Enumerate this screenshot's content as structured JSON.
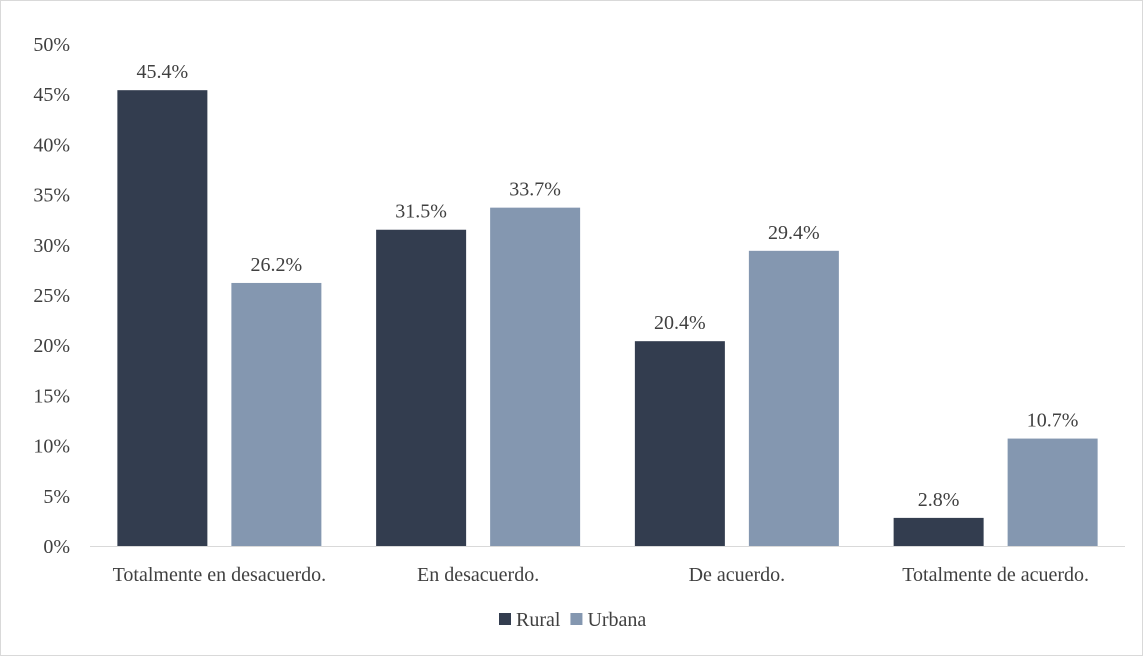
{
  "chart_data": {
    "type": "bar",
    "categories": [
      "Totalmente en desacuerdo.",
      "En desacuerdo.",
      "De acuerdo.",
      "Totalmente de acuerdo."
    ],
    "series": [
      {
        "name": "Rural",
        "values": [
          45.4,
          31.5,
          20.4,
          2.8
        ],
        "color": "#333d4f"
      },
      {
        "name": "Urbana",
        "values": [
          26.2,
          33.7,
          29.4,
          10.7
        ],
        "color": "#8497b0"
      }
    ],
    "data_labels": [
      [
        "45.4%",
        "31.5%",
        "20.4%",
        "2.8%"
      ],
      [
        "26.2%",
        "33.7%",
        "29.4%",
        "10.7%"
      ]
    ],
    "y_ticks": [
      "0%",
      "5%",
      "10%",
      "15%",
      "20%",
      "25%",
      "30%",
      "35%",
      "40%",
      "45%",
      "50%"
    ],
    "ylim": [
      0,
      50
    ],
    "title": "",
    "xlabel": "",
    "ylabel": "",
    "grid": false,
    "legend_position": "bottom"
  }
}
